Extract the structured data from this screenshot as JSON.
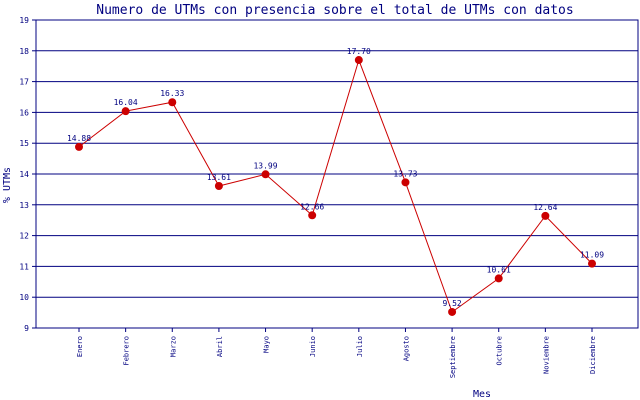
{
  "chart_data": {
    "type": "line",
    "title": "Numero de UTMs con presencia sobre el total de UTMs con datos",
    "xlabel": "Mes",
    "ylabel": "% UTMs",
    "categories": [
      "Enero",
      "Febrero",
      "Marzo",
      "Abril",
      "Mayo",
      "Junio",
      "Julio",
      "Agosto",
      "Septiembre",
      "Octubre",
      "Noviembre",
      "Diciembre"
    ],
    "series": [
      {
        "values": [
          14.88,
          16.04,
          16.33,
          13.61,
          13.99,
          12.66,
          17.7,
          13.73,
          9.52,
          10.61,
          12.64,
          11.09
        ],
        "labels": [
          "14.88",
          "16.04",
          "16.33",
          "13.61",
          "13.99",
          "12.66",
          "17.70",
          "13.73",
          "9.52",
          "10.61",
          "12.64",
          "11.09"
        ]
      }
    ],
    "yticks": [
      "9",
      "10",
      "11",
      "12",
      "13",
      "14",
      "15",
      "16",
      "17",
      "18",
      "19"
    ],
    "ylim": [
      9,
      19
    ],
    "grid": true,
    "legend": "none",
    "colors": {
      "line": "#cc0000",
      "marker": "#cc0000",
      "grid": "#000080",
      "axis": "#000080",
      "text": "#000080"
    }
  }
}
